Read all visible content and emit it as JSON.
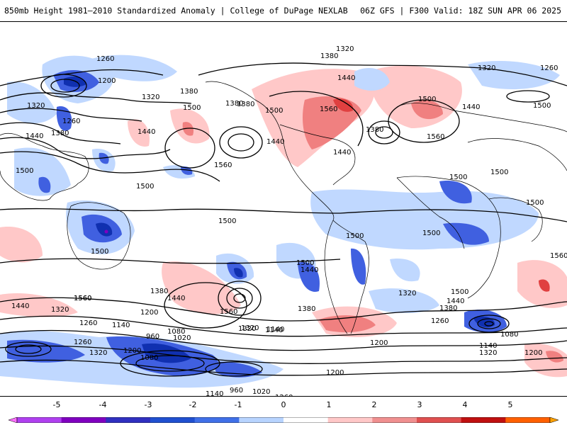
{
  "header": {
    "title_left": "850mb Height 1981–2010 Standardized Anomaly | College of DuPage NEXLAB",
    "title_right": "06Z GFS | F300 Valid: 18Z SUN APR 06 2025"
  },
  "map": {
    "contour_labels": [
      "1320",
      "1380",
      "1260",
      "1320",
      "1200",
      "1320",
      "1380",
      "1500",
      "1380",
      "1500",
      "1440",
      "1560",
      "1380",
      "1440",
      "1500",
      "1560",
      "1440",
      "1500",
      "1440",
      "1320",
      "1260",
      "1260",
      "1380",
      "1440",
      "1500",
      "1500",
      "1500",
      "1500",
      "1500",
      "1560",
      "1380",
      "1500",
      "1560",
      "1500",
      "1500",
      "1440",
      "1500",
      "1440",
      "1500",
      "1380",
      "1440",
      "1320",
      "1560",
      "1320",
      "1200",
      "1260",
      "1140",
      "1080",
      "1020",
      "960",
      "1200",
      "1080",
      "1020",
      "960",
      "1140",
      "1260",
      "1320",
      "1260",
      "1140",
      "1380",
      "1320",
      "1200",
      "1500",
      "1440",
      "1380",
      "1260",
      "1200",
      "1140",
      "1080",
      "1320",
      "1140",
      "1440",
      "1560",
      "1560",
      "1320",
      "1200"
    ],
    "colors": {
      "neg5": "#ff77ff",
      "neg4": "#8000c0",
      "neg3": "#1030b0",
      "neg2": "#4060e0",
      "neg1": "#c0d8ff",
      "zero": "#ffffff",
      "pos1": "#ffc8c8",
      "pos2": "#f08080",
      "pos3": "#e04040",
      "pos4": "#b00000",
      "pos5": "#ff9000"
    }
  },
  "colorbar": {
    "ticks": [
      "-5",
      "-4",
      "-3",
      "-2",
      "-1",
      "0",
      "1",
      "2",
      "3",
      "4",
      "5"
    ],
    "colors": [
      "#ff70ff",
      "#b040f0",
      "#8000c0",
      "#3030c0",
      "#2050d0",
      "#4070e8",
      "#b8d4ff",
      "#ffffff",
      "#ffc8c8",
      "#f09090",
      "#e05050",
      "#c01010",
      "#ff6000",
      "#ffa000"
    ]
  }
}
